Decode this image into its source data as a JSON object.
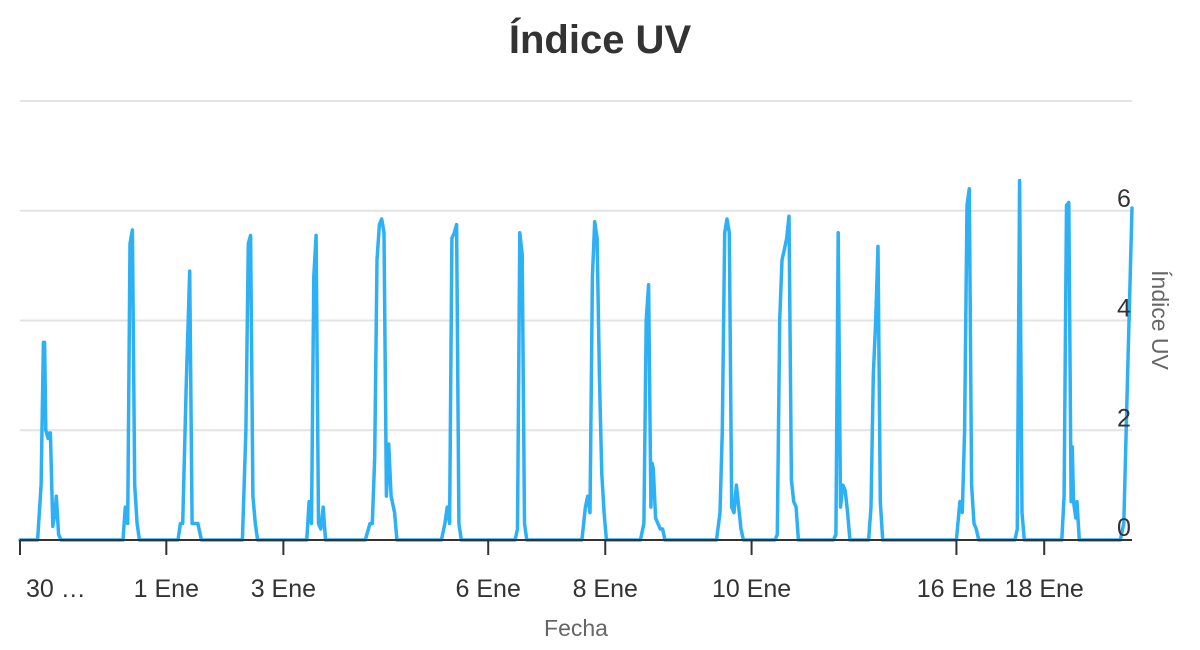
{
  "chart_data": {
    "type": "line",
    "title": "Índice UV",
    "xlabel": "Fecha",
    "ylabel": "Índice UV",
    "ylim": [
      0,
      8
    ],
    "y_ticks": [
      0,
      2,
      4,
      6
    ],
    "y_axis_position": "right",
    "grid": true,
    "legend": "none",
    "x_tick_labels": [
      {
        "label": "30 …",
        "x": 3.75
      },
      {
        "label": "1 Ene",
        "x": 5.0
      },
      {
        "label": "3 Ene",
        "x": 6.0
      },
      {
        "label": "6 Ene",
        "x": 7.75
      },
      {
        "label": "8 Ene",
        "x": 8.75
      },
      {
        "label": "10 Ene",
        "x": 10.0
      },
      {
        "label": "16 Ene",
        "x": 11.75
      },
      {
        "label": "18 Ene",
        "x": 12.5
      }
    ],
    "xlim": [
      3.75,
      13.25
    ],
    "series": [
      {
        "color": "#2eb0f5",
        "points": [
          [
            3.75,
            0
          ],
          [
            3.85,
            0
          ],
          [
            3.9,
            0
          ],
          [
            3.93,
            1
          ],
          [
            3.95,
            3.6
          ],
          [
            3.96,
            3.6
          ],
          [
            3.97,
            2
          ],
          [
            3.99,
            1.85
          ],
          [
            4.0,
            1.95
          ],
          [
            4.01,
            1.95
          ],
          [
            4.03,
            0.25
          ],
          [
            4.05,
            0.5
          ],
          [
            4.06,
            0.8
          ],
          [
            4.08,
            0.1
          ],
          [
            4.1,
            0
          ],
          [
            4.55,
            0
          ],
          [
            4.63,
            0
          ],
          [
            4.65,
            0.6
          ],
          [
            4.67,
            0.3
          ],
          [
            4.69,
            5.4
          ],
          [
            4.71,
            5.65
          ],
          [
            4.73,
            1
          ],
          [
            4.75,
            0.3
          ],
          [
            4.77,
            0
          ],
          [
            5.1,
            0
          ],
          [
            5.12,
            0.3
          ],
          [
            5.14,
            0.3
          ],
          [
            5.17,
            2.8
          ],
          [
            5.2,
            4.9
          ],
          [
            5.22,
            0.3
          ],
          [
            5.25,
            0.3
          ],
          [
            5.27,
            0.3
          ],
          [
            5.3,
            0
          ],
          [
            5.65,
            0
          ],
          [
            5.68,
            2
          ],
          [
            5.7,
            5.4
          ],
          [
            5.72,
            5.55
          ],
          [
            5.74,
            0.8
          ],
          [
            5.76,
            0.3
          ],
          [
            5.78,
            0
          ],
          [
            6.2,
            0
          ],
          [
            6.22,
            0.7
          ],
          [
            6.24,
            0.3
          ],
          [
            6.26,
            4.8
          ],
          [
            6.28,
            5.55
          ],
          [
            6.3,
            0.3
          ],
          [
            6.32,
            0.2
          ],
          [
            6.34,
            0.6
          ],
          [
            6.36,
            0
          ],
          [
            6.7,
            0
          ],
          [
            6.74,
            0.3
          ],
          [
            6.76,
            0.3
          ],
          [
            6.78,
            1.5
          ],
          [
            6.8,
            5.1
          ],
          [
            6.82,
            5.75
          ],
          [
            6.84,
            5.85
          ],
          [
            6.86,
            5.6
          ],
          [
            6.88,
            0.8
          ],
          [
            6.9,
            1.75
          ],
          [
            6.92,
            0.8
          ],
          [
            6.95,
            0.5
          ],
          [
            6.97,
            0
          ],
          [
            7.35,
            0
          ],
          [
            7.38,
            0.3
          ],
          [
            7.4,
            0.6
          ],
          [
            7.42,
            0.3
          ],
          [
            7.44,
            5.5
          ],
          [
            7.46,
            5.6
          ],
          [
            7.48,
            5.75
          ],
          [
            7.5,
            0.3
          ],
          [
            7.52,
            0
          ],
          [
            7.98,
            0
          ],
          [
            8.0,
            0.2
          ],
          [
            8.02,
            5.6
          ],
          [
            8.04,
            5.2
          ],
          [
            8.06,
            0.3
          ],
          [
            8.08,
            0
          ],
          [
            8.55,
            0
          ],
          [
            8.58,
            0.6
          ],
          [
            8.6,
            0.8
          ],
          [
            8.62,
            0.5
          ],
          [
            8.64,
            4.8
          ],
          [
            8.66,
            5.8
          ],
          [
            8.68,
            5.5
          ],
          [
            8.7,
            3
          ],
          [
            8.72,
            1.2
          ],
          [
            8.74,
            0.5
          ],
          [
            8.76,
            0
          ],
          [
            9.05,
            0
          ],
          [
            9.08,
            0.3
          ],
          [
            9.1,
            4
          ],
          [
            9.12,
            4.65
          ],
          [
            9.14,
            0.6
          ],
          [
            9.15,
            1.4
          ],
          [
            9.16,
            1.3
          ],
          [
            9.18,
            0.4
          ],
          [
            9.2,
            0.3
          ],
          [
            9.22,
            0.2
          ],
          [
            9.24,
            0.2
          ],
          [
            9.26,
            0
          ],
          [
            9.7,
            0
          ],
          [
            9.73,
            0.5
          ],
          [
            9.75,
            2
          ],
          [
            9.77,
            5.6
          ],
          [
            9.79,
            5.85
          ],
          [
            9.81,
            5.6
          ],
          [
            9.83,
            0.6
          ],
          [
            9.85,
            0.5
          ],
          [
            9.87,
            1
          ],
          [
            9.89,
            0.6
          ],
          [
            9.91,
            0.2
          ],
          [
            9.93,
            0
          ],
          [
            10.2,
            0
          ],
          [
            10.22,
            0.1
          ],
          [
            10.24,
            4
          ],
          [
            10.26,
            5.1
          ],
          [
            10.28,
            5.3
          ],
          [
            10.3,
            5.5
          ],
          [
            10.32,
            5.9
          ],
          [
            10.34,
            1.1
          ],
          [
            10.36,
            0.7
          ],
          [
            10.38,
            0.6
          ],
          [
            10.4,
            0
          ],
          [
            10.7,
            0
          ],
          [
            10.72,
            0.1
          ],
          [
            10.74,
            5.6
          ],
          [
            10.76,
            0.6
          ],
          [
            10.78,
            1
          ],
          [
            10.8,
            0.9
          ],
          [
            10.82,
            0.5
          ],
          [
            10.84,
            0
          ],
          [
            11.0,
            0
          ],
          [
            11.02,
            0.6
          ],
          [
            11.04,
            3
          ],
          [
            11.06,
            4
          ],
          [
            11.08,
            5.35
          ],
          [
            11.1,
            0.7
          ],
          [
            11.12,
            0
          ],
          [
            11.75,
            0
          ],
          [
            11.78,
            0.7
          ],
          [
            11.8,
            0.5
          ],
          [
            11.82,
            2
          ],
          [
            11.84,
            6.1
          ],
          [
            11.86,
            6.4
          ],
          [
            11.88,
            1
          ],
          [
            11.9,
            0.3
          ],
          [
            11.92,
            0.2
          ],
          [
            11.94,
            0
          ],
          [
            12.25,
            0
          ],
          [
            12.27,
            0.2
          ],
          [
            12.29,
            6.55
          ],
          [
            12.31,
            0.5
          ],
          [
            12.33,
            0
          ],
          [
            12.65,
            0
          ],
          [
            12.67,
            0.8
          ],
          [
            12.69,
            6.1
          ],
          [
            12.71,
            6.15
          ],
          [
            12.73,
            0.7
          ],
          [
            12.74,
            1.7
          ],
          [
            12.75,
            0.7
          ],
          [
            12.77,
            0.4
          ],
          [
            12.78,
            0.7
          ],
          [
            12.8,
            0
          ],
          [
            13.1,
            0
          ],
          [
            13.15,
            0
          ],
          [
            13.18,
            0.3
          ],
          [
            13.21,
            2.8
          ],
          [
            13.25,
            6.05
          ]
        ]
      }
    ]
  }
}
